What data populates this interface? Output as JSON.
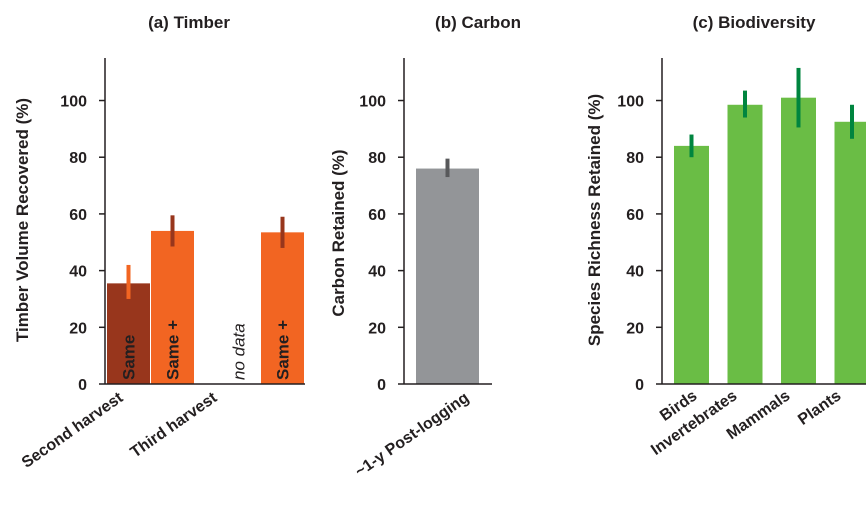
{
  "colors": {
    "timber_second_same": "#98361c",
    "timber_orange": "#f26522",
    "timber_err_light": "#f26522",
    "timber_err_dark": "#98361c",
    "carbon_bar": "#939598",
    "carbon_err": "#58595b",
    "bio_bar": "#6abd45",
    "bio_err": "#00853f",
    "axis": "#231f20"
  },
  "chart_data": [
    {
      "type": "bar",
      "title": "(a) Timber",
      "xlabel": "",
      "ylabel": "Timber Volume Recovered (%)",
      "ylim": [
        0,
        115
      ],
      "yticks": [
        "0",
        "20",
        "40",
        "60",
        "80",
        "100"
      ],
      "categories": [
        "Second harvest",
        "Third harvest"
      ],
      "bars": [
        {
          "group": 0,
          "slot": 0,
          "label": "Same",
          "value": 35.5,
          "err_low": 30,
          "err_high": 42,
          "color": "timber_second_same",
          "err_color": "timber_err_light"
        },
        {
          "group": 0,
          "slot": 1,
          "label": "Same +",
          "value": 54,
          "err_low": 48.5,
          "err_high": 59.5,
          "color": "timber_orange",
          "err_color": "timber_err_dark"
        },
        {
          "group": 1,
          "slot": 1,
          "label": "Same +",
          "value": 53.5,
          "err_low": 48,
          "err_high": 59,
          "color": "timber_orange",
          "err_color": "timber_err_dark"
        }
      ],
      "annotations": [
        {
          "group": 1,
          "slot": 0,
          "text": "no data"
        }
      ]
    },
    {
      "type": "bar",
      "title": "(b) Carbon",
      "xlabel": "",
      "ylabel": "Carbon Retained (%)",
      "ylim": [
        0,
        115
      ],
      "yticks": [
        "0",
        "20",
        "40",
        "60",
        "80",
        "100"
      ],
      "categories": [
        "~1-y Post-logging"
      ],
      "bars": [
        {
          "group": 0,
          "value": 76,
          "err_low": 73,
          "err_high": 79.5,
          "color": "carbon_bar",
          "err_color": "carbon_err"
        }
      ]
    },
    {
      "type": "bar",
      "title": "(c) Biodiversity",
      "xlabel": "",
      "ylabel": "Species Richness Retained (%)",
      "ylim": [
        0,
        115
      ],
      "yticks": [
        "0",
        "20",
        "40",
        "60",
        "80",
        "100"
      ],
      "categories": [
        "Birds",
        "Invertebrates",
        "Mammals",
        "Plants"
      ],
      "bars": [
        {
          "group": 0,
          "value": 84,
          "err_low": 80,
          "err_high": 88,
          "color": "bio_bar",
          "err_color": "bio_err"
        },
        {
          "group": 1,
          "value": 98.5,
          "err_low": 94,
          "err_high": 103.5,
          "color": "bio_bar",
          "err_color": "bio_err"
        },
        {
          "group": 2,
          "value": 101,
          "err_low": 90.5,
          "err_high": 111.5,
          "color": "bio_bar",
          "err_color": "bio_err"
        },
        {
          "group": 3,
          "value": 92.5,
          "err_low": 86.5,
          "err_high": 98.5,
          "color": "bio_bar",
          "err_color": "bio_err"
        }
      ]
    }
  ]
}
